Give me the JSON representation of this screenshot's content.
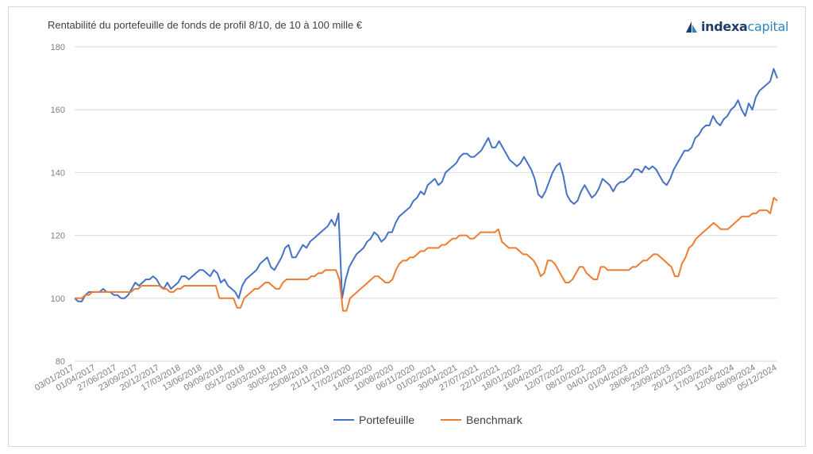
{
  "logo": {
    "text_bold": "indexa",
    "text_light": "capital",
    "icon": "indexa-logo-icon"
  },
  "chart_data": {
    "type": "line",
    "title": "Rentabilité du portefeuille de fonds de profil 8/10, de 10 à 100 mille €",
    "xlabel": "",
    "ylabel": "",
    "ylim": [
      80,
      180
    ],
    "yticks": [
      80,
      100,
      120,
      140,
      160,
      180
    ],
    "grid": true,
    "legend_position": "bottom",
    "x_tick_labels": [
      "03/01/2017",
      "01/04/2017",
      "27/06/2017",
      "23/09/2017",
      "20/12/2017",
      "17/03/2018",
      "13/06/2018",
      "09/09/2018",
      "05/12/2018",
      "03/03/2019",
      "30/05/2019",
      "25/08/2019",
      "21/11/2019",
      "17/02/2020",
      "14/05/2020",
      "10/08/2020",
      "06/11/2020",
      "01/02/2021",
      "30/04/2021",
      "27/07/2021",
      "22/10/2021",
      "18/01/2022",
      "16/04/2022",
      "12/07/2022",
      "08/10/2022",
      "04/01/2023",
      "01/04/2023",
      "28/06/2023",
      "23/09/2023",
      "20/12/2023",
      "17/03/2024",
      "12/06/2024",
      "08/09/2024",
      "05/12/2024"
    ],
    "series": [
      {
        "name": "Portefeuille",
        "color": "#4472c4",
        "values": [
          100,
          99,
          99,
          101,
          102,
          102,
          102,
          102,
          103,
          102,
          102,
          101,
          101,
          100,
          100,
          101,
          103,
          105,
          104,
          105,
          106,
          106,
          107,
          106,
          104,
          103,
          105,
          103,
          104,
          105,
          107,
          107,
          106,
          107,
          108,
          109,
          109,
          108,
          107,
          109,
          108,
          105,
          106,
          104,
          103,
          102,
          100,
          104,
          106,
          107,
          108,
          109,
          111,
          112,
          113,
          110,
          109,
          111,
          113,
          116,
          117,
          113,
          113,
          115,
          117,
          116,
          118,
          119,
          120,
          121,
          122,
          123,
          125,
          123,
          127,
          100,
          106,
          110,
          112,
          114,
          115,
          116,
          118,
          119,
          121,
          120,
          118,
          119,
          121,
          121,
          124,
          126,
          127,
          128,
          129,
          131,
          132,
          134,
          133,
          136,
          137,
          138,
          136,
          137,
          140,
          141,
          142,
          143,
          145,
          146,
          146,
          145,
          145,
          146,
          147,
          149,
          151,
          148,
          148,
          150,
          148,
          146,
          144,
          143,
          142,
          143,
          145,
          143,
          141,
          138,
          133,
          132,
          134,
          137,
          140,
          142,
          143,
          139,
          133,
          131,
          130,
          131,
          134,
          136,
          134,
          132,
          133,
          135,
          138,
          137,
          136,
          134,
          136,
          137,
          137,
          138,
          139,
          141,
          141,
          140,
          142,
          141,
          142,
          141,
          139,
          137,
          136,
          138,
          141,
          143,
          145,
          147,
          147,
          148,
          151,
          152,
          154,
          155,
          155,
          158,
          156,
          155,
          157,
          158,
          160,
          161,
          163,
          160,
          158,
          162,
          160,
          164,
          166,
          167,
          168,
          169,
          173,
          170
        ]
      },
      {
        "name": "Benchmark",
        "color": "#ed7d31",
        "values": [
          100,
          100,
          100,
          101,
          101,
          102,
          102,
          102,
          102,
          102,
          102,
          102,
          102,
          102,
          102,
          102,
          102,
          103,
          103,
          104,
          104,
          104,
          104,
          104,
          104,
          103,
          103,
          102,
          102,
          103,
          103,
          104,
          104,
          104,
          104,
          104,
          104,
          104,
          104,
          104,
          104,
          100,
          100,
          100,
          100,
          100,
          97,
          97,
          100,
          101,
          102,
          103,
          103,
          104,
          105,
          105,
          104,
          103,
          103,
          105,
          106,
          106,
          106,
          106,
          106,
          106,
          106,
          107,
          107,
          108,
          108,
          109,
          109,
          109,
          109,
          106,
          96,
          96,
          100,
          101,
          102,
          103,
          104,
          105,
          106,
          107,
          107,
          106,
          105,
          105,
          106,
          109,
          111,
          112,
          112,
          113,
          113,
          114,
          115,
          115,
          116,
          116,
          116,
          116,
          117,
          117,
          118,
          119,
          119,
          120,
          120,
          120,
          119,
          119,
          120,
          121,
          121,
          121,
          121,
          121,
          122,
          118,
          117,
          116,
          116,
          116,
          115,
          114,
          114,
          113,
          112,
          110,
          107,
          108,
          112,
          112,
          111,
          109,
          107,
          105,
          105,
          106,
          108,
          110,
          110,
          108,
          107,
          106,
          106,
          110,
          110,
          109,
          109,
          109,
          109,
          109,
          109,
          109,
          110,
          110,
          111,
          112,
          112,
          113,
          114,
          114,
          113,
          112,
          111,
          110,
          107,
          107,
          111,
          113,
          116,
          117,
          119,
          120,
          121,
          122,
          123,
          124,
          123,
          122,
          122,
          122,
          123,
          124,
          125,
          126,
          126,
          126,
          127,
          127,
          128,
          128,
          128,
          127,
          132,
          131
        ]
      }
    ]
  }
}
